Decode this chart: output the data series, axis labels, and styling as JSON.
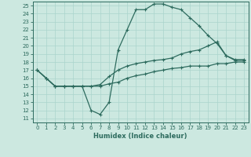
{
  "xlabel": "Humidex (Indice chaleur)",
  "background_color": "#cce8e0",
  "grid_color": "#aad4cc",
  "line_color": "#2d6b5e",
  "xlim": [
    -0.5,
    23.5
  ],
  "ylim": [
    10.5,
    25.5
  ],
  "yticks": [
    11,
    12,
    13,
    14,
    15,
    16,
    17,
    18,
    19,
    20,
    21,
    22,
    23,
    24,
    25
  ],
  "xticks": [
    0,
    1,
    2,
    3,
    4,
    5,
    6,
    7,
    8,
    9,
    10,
    11,
    12,
    13,
    14,
    15,
    16,
    17,
    18,
    19,
    20,
    21,
    22,
    23
  ],
  "line1_x": [
    0,
    1,
    2,
    3,
    4,
    5,
    6,
    7,
    8,
    9,
    10,
    11,
    12,
    13,
    14,
    15,
    16,
    17,
    18,
    19,
    20,
    21,
    22,
    23
  ],
  "line1_y": [
    17,
    16,
    15,
    15,
    15,
    15,
    12,
    11.5,
    13,
    19.5,
    22,
    24.5,
    24.5,
    25.2,
    25.2,
    24.8,
    24.5,
    23.5,
    22.5,
    21.3,
    20.3,
    18.8,
    18.2,
    18.2
  ],
  "line2_x": [
    0,
    1,
    2,
    3,
    4,
    5,
    6,
    7,
    8,
    9,
    10,
    11,
    12,
    13,
    14,
    15,
    16,
    17,
    18,
    19,
    20,
    21,
    22,
    23
  ],
  "line2_y": [
    17,
    16,
    15,
    15,
    15,
    15,
    15,
    15.2,
    16.2,
    17,
    17.5,
    17.8,
    18.0,
    18.2,
    18.3,
    18.5,
    19.0,
    19.3,
    19.5,
    20.0,
    20.5,
    18.8,
    18.3,
    18.3
  ],
  "line3_x": [
    0,
    1,
    2,
    3,
    4,
    5,
    6,
    7,
    8,
    9,
    10,
    11,
    12,
    13,
    14,
    15,
    16,
    17,
    18,
    19,
    20,
    21,
    22,
    23
  ],
  "line3_y": [
    17,
    16,
    15,
    15,
    15,
    15,
    15,
    15,
    15.3,
    15.5,
    16.0,
    16.3,
    16.5,
    16.8,
    17.0,
    17.2,
    17.3,
    17.5,
    17.5,
    17.5,
    17.8,
    17.8,
    18.0,
    18.0
  ]
}
